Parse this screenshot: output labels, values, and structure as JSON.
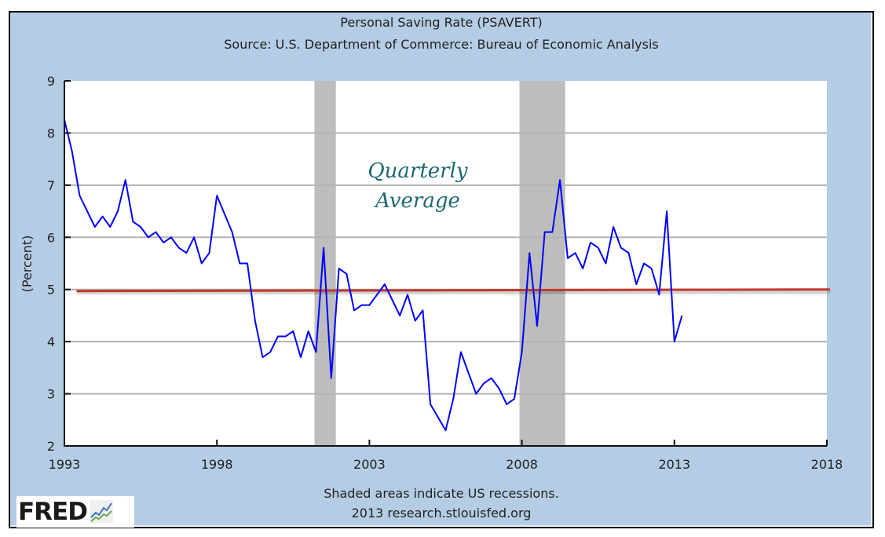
{
  "chart_data": {
    "type": "line",
    "title": "Personal Saving Rate (PSAVERT)",
    "subtitle": "Source: U.S. Department of Commerce: Bureau of Economic Analysis",
    "xlabel": "",
    "ylabel": "(Percent)",
    "xlim": [
      1993,
      2018
    ],
    "ylim": [
      2,
      9
    ],
    "x_ticks": [
      "1993",
      "1998",
      "2003",
      "2008",
      "2013",
      "2018"
    ],
    "x_tick_values": [
      1993,
      1998,
      2003,
      2008,
      2013,
      2018
    ],
    "y_ticks": [
      "2",
      "3",
      "4",
      "5",
      "6",
      "7",
      "8",
      "9"
    ],
    "y_tick_values": [
      2,
      3,
      4,
      5,
      6,
      7,
      8,
      9
    ],
    "grid": "horizontal",
    "series": [
      {
        "name": "PSAVERT",
        "color": "#0000ff",
        "x_start": 1993.0,
        "x_step": 0.25,
        "values": [
          8.25,
          7.65,
          6.8,
          6.5,
          6.2,
          6.4,
          6.2,
          6.5,
          7.1,
          6.3,
          6.2,
          6.0,
          6.1,
          5.9,
          6.0,
          5.8,
          5.7,
          6.0,
          5.5,
          5.7,
          6.8,
          6.45,
          6.1,
          5.5,
          5.5,
          4.4,
          3.7,
          3.8,
          4.1,
          4.1,
          4.2,
          3.7,
          4.2,
          3.8,
          5.8,
          3.3,
          5.4,
          5.3,
          4.6,
          4.7,
          4.7,
          4.9,
          5.1,
          4.8,
          4.5,
          4.9,
          4.4,
          4.6,
          2.8,
          2.55,
          2.3,
          2.9,
          3.8,
          3.4,
          3.0,
          3.2,
          3.3,
          3.1,
          2.8,
          2.9,
          3.8,
          5.7,
          4.3,
          6.1,
          6.1,
          7.1,
          5.6,
          5.7,
          5.4,
          5.9,
          5.8,
          5.5,
          6.2,
          5.8,
          5.7,
          5.1,
          5.5,
          5.4,
          4.9,
          6.5,
          4.0,
          4.5
        ]
      },
      {
        "name": "Average",
        "color": "#c0392b",
        "x": [
          1993.4,
          2018.1
        ],
        "values": [
          4.97,
          5.0
        ]
      }
    ],
    "recessions": [
      {
        "start": 2001.2,
        "end": 2001.9
      },
      {
        "start": 2007.92,
        "end": 2009.42
      }
    ],
    "recession_color": "#bdbdbd",
    "annotations": [
      "Quarterly",
      "Average"
    ],
    "annotation_color": "#1c6a70",
    "footer_note": "Shaded areas indicate US recessions.",
    "footer_source": "2013 research.stlouisfed.org"
  },
  "logo": {
    "text": "FRED"
  }
}
